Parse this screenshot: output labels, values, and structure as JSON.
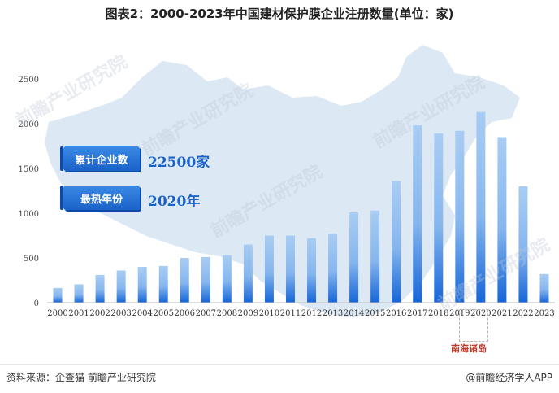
{
  "header": {
    "title": "图表2：2000-2023年中国建材保护膜企业注册数量(单位：家)"
  },
  "badges": [
    {
      "label": "累计企业数",
      "value": "22500家"
    },
    {
      "label": "最热年份",
      "value": "2020年"
    }
  ],
  "inset": {
    "label": "南海诸岛"
  },
  "watermark": {
    "text": "前瞻产业研究院"
  },
  "footer": {
    "source": "资料来源：企查猫 前瞻产业研究院",
    "brand": "@前瞻经济学人APP"
  },
  "colors": {
    "bar_top": "#a9cdf3",
    "bar_bottom": "#1565d8",
    "map": "#dde8f5",
    "badge": "#2a78dc"
  },
  "chart_data": {
    "type": "bar",
    "title": "图表2：2000-2023年中国建材保护膜企业注册数量(单位：家)",
    "xlabel": "",
    "ylabel": "",
    "ylim": [
      0,
      2500
    ],
    "yticks": [
      0,
      500,
      1000,
      1500,
      2000,
      2500
    ],
    "grid": false,
    "categories": [
      "2000",
      "2001",
      "2002",
      "2003",
      "2004",
      "2005",
      "2006",
      "2007",
      "2008",
      "2009",
      "2010",
      "2011",
      "2012",
      "2013",
      "2014",
      "2015",
      "2016",
      "2017",
      "2018",
      "2019",
      "2020",
      "2021",
      "2022",
      "2023"
    ],
    "values": [
      165,
      205,
      310,
      360,
      400,
      410,
      500,
      510,
      530,
      650,
      750,
      750,
      720,
      770,
      1010,
      1030,
      1360,
      1980,
      1890,
      1920,
      2130,
      1850,
      1300,
      320
    ]
  }
}
